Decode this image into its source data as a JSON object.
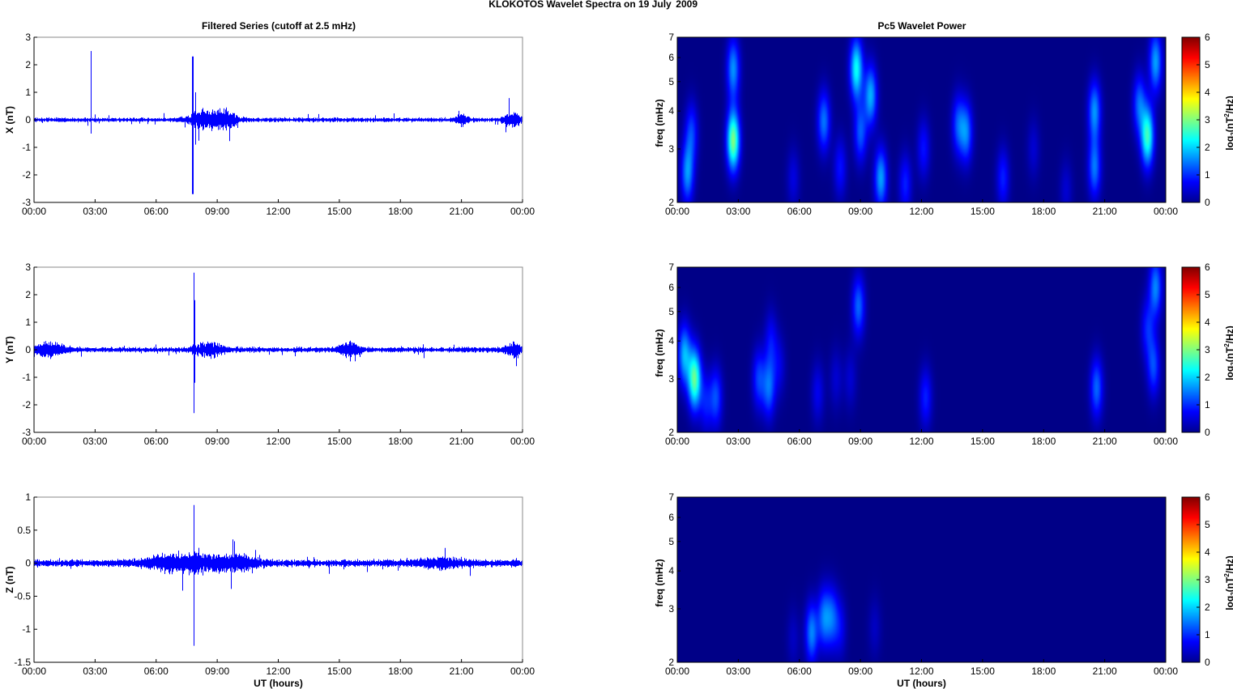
{
  "figure": {
    "suptitle": "KLOKOTOS Wavelet Spectra on 19 July",
    "year": "2009",
    "left_title": "Filtered Series (cutoff at 2.5 mHz)",
    "right_title": "Pc5 Wavelet Power",
    "xlabel": "UT (hours)",
    "xticks": [
      "00:00",
      "03:00",
      "06:00",
      "09:00",
      "12:00",
      "15:00",
      "18:00",
      "21:00",
      "00:00"
    ],
    "freq_label": "freq (mHz)",
    "colorbar_label": {
      "prefix": "log",
      "sub": "2",
      "mid": "(nT",
      "sup": "2",
      "suffix": "/Hz)"
    }
  },
  "colors": {
    "trace": "#0000ff",
    "axis": "#000000",
    "background_low": "#00008f",
    "colormap": "jet"
  },
  "chart_data": [
    {
      "type": "line",
      "component": "X",
      "ylabel": "X (nT)",
      "xlim": [
        0,
        24
      ],
      "ylim": [
        -3,
        3
      ],
      "yticks": [
        3,
        2,
        1,
        0,
        -1,
        -2,
        -3
      ],
      "ytick_labels": [
        "3",
        "2",
        "1",
        "0",
        "-1",
        "-2",
        "-3"
      ],
      "noise_level": 0.06,
      "spikes": [
        {
          "t": 2.8,
          "min": -0.5,
          "max": 2.5
        },
        {
          "t": 7.8,
          "min": -2.7,
          "max": 2.3
        },
        {
          "t": 7.95,
          "min": -0.9,
          "max": 1.0
        }
      ],
      "bursts": [
        {
          "t": 8.5,
          "width": 1.8,
          "amp": 0.35
        },
        {
          "t": 9.5,
          "width": 1.0,
          "amp": 0.25
        },
        {
          "t": 21.0,
          "width": 0.6,
          "amp": 0.2
        },
        {
          "t": 23.5,
          "width": 0.8,
          "amp": 0.3
        }
      ]
    },
    {
      "type": "line",
      "component": "Y",
      "ylabel": "Y (nT)",
      "xlim": [
        0,
        24
      ],
      "ylim": [
        -3,
        3
      ],
      "yticks": [
        3,
        2,
        1,
        0,
        -1,
        -2,
        -3
      ],
      "ytick_labels": [
        "3",
        "2",
        "1",
        "0",
        "-1",
        "-2",
        "-3"
      ],
      "noise_level": 0.07,
      "spikes": [
        {
          "t": 7.85,
          "min": -2.3,
          "max": 2.8
        },
        {
          "t": 7.9,
          "min": -1.2,
          "max": 1.8
        }
      ],
      "bursts": [
        {
          "t": 0.8,
          "width": 1.5,
          "amp": 0.25
        },
        {
          "t": 8.6,
          "width": 1.5,
          "amp": 0.25
        },
        {
          "t": 15.5,
          "width": 1.0,
          "amp": 0.3
        },
        {
          "t": 23.6,
          "width": 0.8,
          "amp": 0.25
        }
      ]
    },
    {
      "type": "line",
      "component": "Z",
      "ylabel": "Z (nT)",
      "xlim": [
        0,
        24
      ],
      "ylim": [
        -1.5,
        1
      ],
      "yticks": [
        1,
        0.5,
        0,
        -0.5,
        -1,
        -1.5
      ],
      "ytick_labels": [
        "1",
        "0.5",
        "0",
        "-0.5",
        "-1",
        "-1.5"
      ],
      "noise_level": 0.04,
      "spikes": [
        {
          "t": 7.85,
          "min": -1.25,
          "max": 0.88
        }
      ],
      "bursts": [
        {
          "t": 7.5,
          "width": 3.5,
          "amp": 0.15
        },
        {
          "t": 10.0,
          "width": 2.0,
          "amp": 0.1
        },
        {
          "t": 20.0,
          "width": 2.5,
          "amp": 0.06
        }
      ]
    },
    {
      "type": "heatmap",
      "component": "X",
      "ylabel": "freq (mHz)",
      "xlim": [
        0,
        24
      ],
      "ylim": [
        2,
        7
      ],
      "y_scale": "log",
      "yticks": [
        2,
        3,
        4,
        5,
        6,
        7
      ],
      "ytick_labels": [
        "2",
        "3",
        "4",
        "5",
        "6",
        "7"
      ],
      "colorbar": {
        "clim": [
          0,
          6
        ],
        "ticks": [
          0,
          1,
          2,
          3,
          4,
          5,
          6
        ]
      },
      "blobs": [
        {
          "t": 0.5,
          "f": 2.5,
          "v": 1.8
        },
        {
          "t": 0.7,
          "f": 3.4,
          "v": 1.2
        },
        {
          "t": 2.75,
          "f": 3.2,
          "v": 3.4
        },
        {
          "t": 2.75,
          "f": 5.5,
          "v": 1.8
        },
        {
          "t": 5.7,
          "f": 2.4,
          "v": 0.6
        },
        {
          "t": 7.2,
          "f": 3.7,
          "v": 1.6
        },
        {
          "t": 8.0,
          "f": 2.6,
          "v": 0.9
        },
        {
          "t": 8.8,
          "f": 5.5,
          "v": 2.6
        },
        {
          "t": 9.0,
          "f": 3.4,
          "v": 1.4
        },
        {
          "t": 9.5,
          "f": 4.5,
          "v": 2.0
        },
        {
          "t": 10.0,
          "f": 2.4,
          "v": 1.9
        },
        {
          "t": 11.2,
          "f": 2.3,
          "v": 1.0
        },
        {
          "t": 12.1,
          "f": 3.0,
          "v": 0.9
        },
        {
          "t": 13.8,
          "f": 3.6,
          "v": 1.3
        },
        {
          "t": 14.2,
          "f": 3.4,
          "v": 1.6
        },
        {
          "t": 16.0,
          "f": 2.4,
          "v": 1.0
        },
        {
          "t": 17.5,
          "f": 3.0,
          "v": 0.5
        },
        {
          "t": 19.1,
          "f": 2.2,
          "v": 0.5
        },
        {
          "t": 20.5,
          "f": 4.0,
          "v": 1.8
        },
        {
          "t": 20.5,
          "f": 2.6,
          "v": 1.6
        },
        {
          "t": 22.7,
          "f": 4.2,
          "v": 1.5
        },
        {
          "t": 23.1,
          "f": 3.3,
          "v": 2.9
        },
        {
          "t": 23.5,
          "f": 5.8,
          "v": 1.9
        }
      ]
    },
    {
      "type": "heatmap",
      "component": "Y",
      "ylabel": "freq (mHz)",
      "xlim": [
        0,
        24
      ],
      "ylim": [
        2,
        7
      ],
      "y_scale": "log",
      "yticks": [
        2,
        3,
        4,
        5,
        6,
        7
      ],
      "ytick_labels": [
        "2",
        "3",
        "4",
        "5",
        "6",
        "7"
      ],
      "colorbar": {
        "clim": [
          0,
          6
        ],
        "ticks": [
          0,
          1,
          2,
          3,
          4,
          5,
          6
        ]
      },
      "blobs": [
        {
          "t": 0.35,
          "f": 3.6,
          "v": 2.0
        },
        {
          "t": 0.85,
          "f": 3.0,
          "v": 3.2
        },
        {
          "t": 1.4,
          "f": 2.5,
          "v": 0.9
        },
        {
          "t": 1.9,
          "f": 2.6,
          "v": 1.3
        },
        {
          "t": 4.0,
          "f": 3.0,
          "v": 1.2
        },
        {
          "t": 4.5,
          "f": 2.8,
          "v": 1.5
        },
        {
          "t": 4.6,
          "f": 4.0,
          "v": 0.8
        },
        {
          "t": 5.0,
          "f": 3.3,
          "v": 0.6
        },
        {
          "t": 6.9,
          "f": 2.7,
          "v": 0.7
        },
        {
          "t": 7.8,
          "f": 3.0,
          "v": 0.5
        },
        {
          "t": 8.5,
          "f": 3.0,
          "v": 0.5
        },
        {
          "t": 8.9,
          "f": 5.2,
          "v": 1.5
        },
        {
          "t": 12.2,
          "f": 2.6,
          "v": 1.0
        },
        {
          "t": 20.6,
          "f": 2.8,
          "v": 1.5
        },
        {
          "t": 23.1,
          "f": 4.4,
          "v": 1.0
        },
        {
          "t": 23.4,
          "f": 3.3,
          "v": 1.3
        },
        {
          "t": 23.5,
          "f": 6.0,
          "v": 1.7
        }
      ]
    },
    {
      "type": "heatmap",
      "component": "Z",
      "ylabel": "freq (mHz)",
      "xlim": [
        0,
        24
      ],
      "ylim": [
        2,
        7
      ],
      "y_scale": "log",
      "yticks": [
        2,
        3,
        4,
        5,
        6,
        7
      ],
      "ytick_labels": [
        "2",
        "3",
        "4",
        "5",
        "6",
        "7"
      ],
      "colorbar": {
        "clim": [
          0,
          6
        ],
        "ticks": [
          0,
          1,
          2,
          3,
          4,
          5,
          6
        ]
      },
      "blobs": [
        {
          "t": 6.6,
          "f": 2.5,
          "v": 1.7
        },
        {
          "t": 7.2,
          "f": 2.8,
          "v": 1.5
        },
        {
          "t": 7.6,
          "f": 2.8,
          "v": 1.3
        },
        {
          "t": 8.0,
          "f": 2.6,
          "v": 0.7
        },
        {
          "t": 9.7,
          "f": 2.6,
          "v": 0.4
        },
        {
          "t": 5.7,
          "f": 2.4,
          "v": 0.4
        }
      ]
    }
  ]
}
